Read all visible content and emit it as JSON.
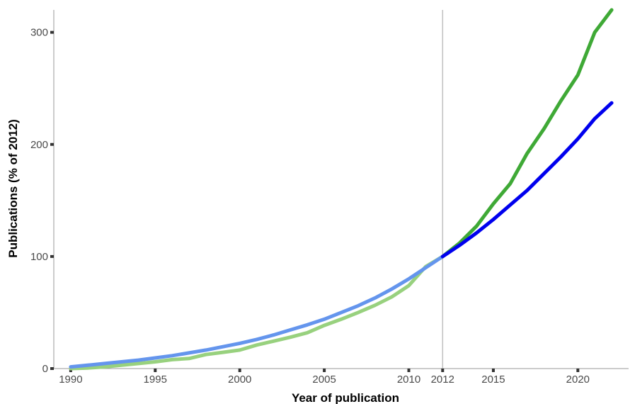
{
  "chart_data": {
    "type": "line",
    "xlabel": "Year of publication",
    "ylabel": "Publications (% of 2012)",
    "xlim": [
      1989,
      2023
    ],
    "ylim": [
      0,
      320
    ],
    "x_ticks": [
      1990,
      1995,
      2000,
      2005,
      2010,
      2012,
      2015,
      2020
    ],
    "y_ticks": [
      0,
      100,
      200,
      300
    ],
    "reference_line_x": 2012,
    "grid": false,
    "series": [
      {
        "color": "#98d17e",
        "x": [
          1990,
          1991,
          1992,
          1993,
          1994,
          1995,
          1996,
          1997,
          1998,
          1999,
          2000,
          2001,
          2002,
          2003,
          2004,
          2005,
          2006,
          2007,
          2008,
          2009,
          2010,
          2011,
          2012
        ],
        "values": [
          0,
          0.5,
          1.5,
          3,
          4.5,
          6,
          8,
          9,
          12.5,
          14.5,
          16.5,
          21,
          24.5,
          28,
          32,
          38.5,
          44,
          50,
          56.5,
          64,
          74,
          91,
          100
        ]
      },
      {
        "color": "#6495ed",
        "x": [
          1990,
          1991,
          1992,
          1993,
          1994,
          1995,
          1996,
          1997,
          1998,
          1999,
          2000,
          2001,
          2002,
          2003,
          2004,
          2005,
          2006,
          2007,
          2008,
          2009,
          2010,
          2011,
          2012
        ],
        "values": [
          1.5,
          3,
          4.5,
          6,
          7.5,
          9.5,
          11.5,
          14,
          16.5,
          19.5,
          22.5,
          26,
          30,
          34.5,
          39,
          44,
          50,
          56,
          63,
          71,
          80,
          90,
          100
        ]
      },
      {
        "color": "#3fa936",
        "x": [
          2012,
          2013,
          2014,
          2015,
          2016,
          2017,
          2018,
          2019,
          2020,
          2021,
          2022
        ],
        "values": [
          100,
          112,
          127,
          147,
          165,
          192,
          214,
          239,
          262,
          300,
          320
        ]
      },
      {
        "color": "#0000ee",
        "x": [
          2012,
          2013,
          2014,
          2015,
          2016,
          2017,
          2018,
          2019,
          2020,
          2021,
          2022
        ],
        "values": [
          100,
          110,
          121,
          133,
          146,
          159,
          174,
          189,
          205,
          223,
          237
        ]
      }
    ]
  }
}
